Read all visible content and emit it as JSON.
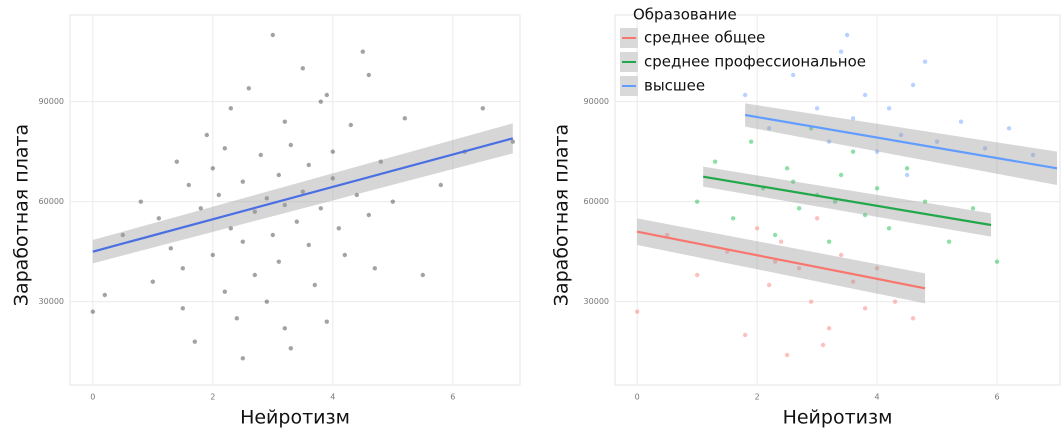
{
  "chart_data": [
    {
      "type": "scatter",
      "xlabel": "Нейротизм",
      "ylabel": "Заработная плата",
      "xlim": [
        -0.38,
        7.12
      ],
      "ylim": [
        5000,
        116000
      ],
      "xticks": [
        0,
        2,
        4,
        6
      ],
      "yticks": [
        30000,
        60000,
        90000
      ],
      "grid": true,
      "series": [
        {
          "color": "#333333",
          "line_color": "#4a6fe3",
          "x": [
            0,
            0.2,
            0.5,
            0.8,
            1.0,
            1.1,
            1.3,
            1.4,
            1.5,
            1.6,
            1.7,
            1.8,
            1.9,
            2.0,
            2.0,
            2.1,
            2.2,
            2.3,
            2.3,
            2.4,
            2.5,
            2.5,
            2.6,
            2.7,
            2.7,
            2.8,
            2.9,
            2.9,
            3.0,
            3.0,
            3.1,
            3.1,
            3.2,
            3.2,
            3.3,
            3.3,
            3.4,
            3.5,
            3.5,
            3.6,
            3.6,
            3.7,
            3.8,
            3.8,
            3.9,
            4.0,
            4.0,
            4.1,
            4.2,
            4.3,
            4.4,
            4.5,
            4.6,
            4.7,
            4.8,
            5.0,
            5.2,
            5.5,
            5.8,
            6.2,
            6.5,
            7.0,
            2.5,
            3.2,
            4.6,
            1.5,
            2.2,
            3.9
          ],
          "values": [
            27000,
            32000,
            50000,
            60000,
            36000,
            55000,
            46000,
            72000,
            40000,
            65000,
            18000,
            58000,
            80000,
            44000,
            70000,
            62000,
            33000,
            88000,
            52000,
            25000,
            66000,
            48000,
            94000,
            38000,
            57000,
            74000,
            30000,
            61000,
            110000,
            50000,
            68000,
            42000,
            84000,
            59000,
            16000,
            77000,
            54000,
            63000,
            100000,
            47000,
            71000,
            35000,
            90000,
            58000,
            24000,
            67000,
            75000,
            52000,
            44000,
            83000,
            62000,
            105000,
            56000,
            40000,
            72000,
            60000,
            85000,
            38000,
            65000,
            75000,
            88000,
            78000,
            13000,
            22000,
            98000,
            28000,
            76000,
            92000
          ],
          "fit": {
            "x": [
              0,
              7
            ],
            "values": [
              45000,
              79000
            ],
            "lower": [
              41500,
              74500
            ],
            "upper": [
              48500,
              83500
            ]
          }
        }
      ]
    },
    {
      "type": "scatter",
      "xlabel": "Нейротизм",
      "ylabel": "Заработная плата",
      "legend_title": "Образование",
      "legend": "top-left",
      "xlim": [
        -0.37,
        7.05
      ],
      "ylim": [
        5000,
        116000
      ],
      "xticks": [
        0,
        2,
        4,
        6
      ],
      "yticks": [
        30000,
        60000,
        90000
      ],
      "grid": true,
      "series": [
        {
          "name": "среднее общее",
          "color": "#f8766d",
          "line_color": "#f8766d",
          "x": [
            0,
            0.5,
            1.0,
            1.5,
            1.8,
            2.0,
            2.2,
            2.4,
            2.5,
            2.7,
            2.9,
            3.0,
            3.2,
            3.4,
            3.6,
            3.8,
            4.0,
            4.3,
            4.6,
            2.3,
            3.1
          ],
          "values": [
            27000,
            50000,
            38000,
            45000,
            20000,
            52000,
            35000,
            48000,
            14000,
            40000,
            30000,
            55000,
            22000,
            44000,
            36000,
            28000,
            40000,
            30000,
            25000,
            42000,
            17000
          ],
          "fit": {
            "x": [
              0,
              4.8
            ],
            "values": [
              51000,
              34000
            ],
            "lower": [
              47000,
              29500
            ],
            "upper": [
              55000,
              38500
            ]
          }
        },
        {
          "name": "среднее профессиональное",
          "color": "#00ba38",
          "line_color": "#22a84a",
          "x": [
            1.0,
            1.3,
            1.6,
            1.9,
            2.1,
            2.3,
            2.5,
            2.7,
            2.9,
            3.0,
            3.2,
            3.4,
            3.6,
            3.8,
            4.0,
            4.2,
            4.5,
            4.8,
            5.2,
            5.6,
            6.0,
            2.6,
            3.3
          ],
          "values": [
            60000,
            72000,
            55000,
            78000,
            64000,
            50000,
            70000,
            58000,
            82000,
            62000,
            48000,
            68000,
            75000,
            56000,
            64000,
            52000,
            70000,
            60000,
            48000,
            58000,
            42000,
            66000,
            60000
          ],
          "fit": {
            "x": [
              1.1,
              5.9
            ],
            "values": [
              67500,
              53000
            ],
            "lower": [
              64500,
              49500
            ],
            "upper": [
              70500,
              56500
            ]
          }
        },
        {
          "name": "высшее",
          "color": "#619cff",
          "line_color": "#619cff",
          "x": [
            1.8,
            2.2,
            2.6,
            3.0,
            3.2,
            3.4,
            3.6,
            3.8,
            4.0,
            4.2,
            4.4,
            4.6,
            4.8,
            5.0,
            5.4,
            5.8,
            6.2,
            6.6,
            3.5,
            4.5
          ],
          "values": [
            92000,
            82000,
            98000,
            88000,
            78000,
            105000,
            85000,
            92000,
            75000,
            88000,
            80000,
            95000,
            102000,
            78000,
            84000,
            76000,
            82000,
            74000,
            110000,
            68000
          ],
          "fit": {
            "x": [
              1.8,
              7
            ],
            "values": [
              86000,
              70000
            ],
            "lower": [
              82500,
              65000
            ],
            "upper": [
              89500,
              75000
            ]
          }
        }
      ]
    }
  ]
}
